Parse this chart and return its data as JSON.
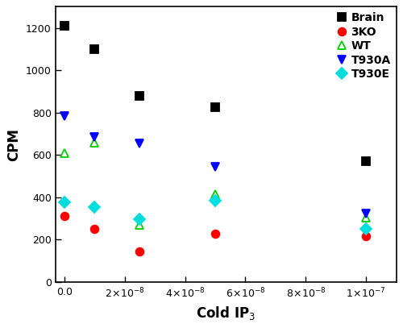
{
  "series": {
    "Brain": {
      "x": [
        0,
        1e-08,
        2.5e-08,
        5e-08,
        1e-07
      ],
      "y": [
        1210,
        1100,
        880,
        825,
        570
      ],
      "color": "#000000",
      "marker": "s",
      "marker_facecolor": "#000000",
      "linecolor": "#000000"
    },
    "3KO": {
      "x": [
        0,
        1e-08,
        2.5e-08,
        5e-08,
        1e-07
      ],
      "y": [
        310,
        250,
        145,
        230,
        215
      ],
      "color": "#ff0000",
      "marker": "o",
      "marker_facecolor": "#ff0000",
      "linecolor": "#ff0000"
    },
    "WT": {
      "x": [
        0,
        1e-08,
        2.5e-08,
        5e-08,
        1e-07
      ],
      "y": [
        610,
        660,
        270,
        415,
        305
      ],
      "color": "#00cc00",
      "marker": "^",
      "marker_facecolor": "none",
      "linecolor": "#00cc00"
    },
    "T930A": {
      "x": [
        0,
        1e-08,
        2.5e-08,
        5e-08,
        1e-07
      ],
      "y": [
        785,
        685,
        655,
        545,
        325
      ],
      "color": "#0000ff",
      "marker": "v",
      "marker_facecolor": "#0000ff",
      "linecolor": "#0000ff"
    },
    "T930E": {
      "x": [
        0,
        1e-08,
        2.5e-08,
        5e-08,
        1e-07
      ],
      "y": [
        375,
        355,
        295,
        385,
        250
      ],
      "color": "#00dddd",
      "marker": "D",
      "marker_facecolor": "#00dddd",
      "linecolor": "#00dddd"
    }
  },
  "xlabel": "Cold IP$_3$",
  "ylabel": "CPM",
  "xlim": [
    -3e-09,
    1.1e-07
  ],
  "ylim": [
    0,
    1300
  ],
  "figsize": [
    5.0,
    4.07
  ],
  "dpi": 100,
  "legend_order": [
    "Brain",
    "3KO",
    "WT",
    "T930A",
    "T930E"
  ],
  "background_color": "#ffffff",
  "spine_color": "#000000",
  "tick_color": "#000000",
  "label_fontsize": 12,
  "tick_fontsize": 9,
  "legend_fontsize": 10,
  "linewidth": 2.2,
  "marker_size": 7
}
